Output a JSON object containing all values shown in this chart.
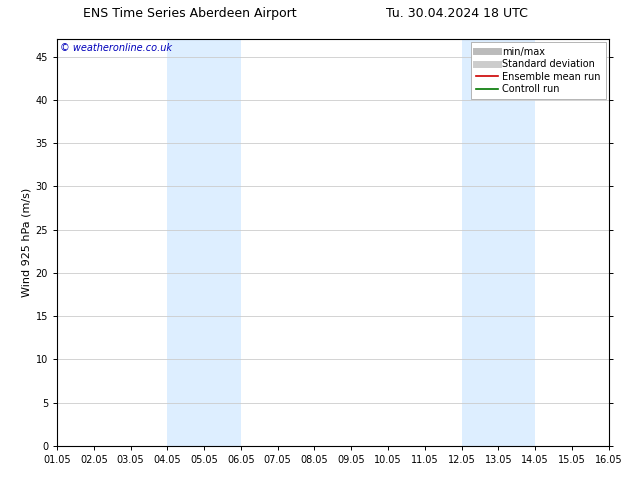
{
  "title_left": "ENS Time Series Aberdeen Airport",
  "title_right": "Tu. 30.04.2024 18 UTC",
  "ylabel": "Wind 925 hPa (m/s)",
  "watermark": "© weatheronline.co.uk",
  "watermark_color": "#0000bb",
  "x_labels": [
    "01.05",
    "02.05",
    "03.05",
    "04.05",
    "05.05",
    "06.05",
    "07.05",
    "08.05",
    "09.05",
    "10.05",
    "11.05",
    "12.05",
    "13.05",
    "14.05",
    "15.05",
    "16.05"
  ],
  "x_ticks": [
    0,
    1,
    2,
    3,
    4,
    5,
    6,
    7,
    8,
    9,
    10,
    11,
    12,
    13,
    14,
    15
  ],
  "ylim": [
    0,
    47
  ],
  "yticks": [
    0,
    5,
    10,
    15,
    20,
    25,
    30,
    35,
    40,
    45
  ],
  "shaded_regions": [
    {
      "xmin": 3,
      "xmax": 5,
      "color": "#ddeeff"
    },
    {
      "xmin": 11,
      "xmax": 13,
      "color": "#ddeeff"
    }
  ],
  "bg_color": "#ffffff",
  "plot_bg_color": "#ffffff",
  "grid_color": "#cccccc",
  "legend_items": [
    {
      "label": "min/max",
      "color": "#bbbbbb",
      "lw": 5
    },
    {
      "label": "Standard deviation",
      "color": "#cccccc",
      "lw": 5
    },
    {
      "label": "Ensemble mean run",
      "color": "#cc0000",
      "lw": 1.2
    },
    {
      "label": "Controll run",
      "color": "#007700",
      "lw": 1.2
    }
  ],
  "title_fontsize": 9,
  "tick_fontsize": 7,
  "ylabel_fontsize": 8,
  "watermark_fontsize": 7,
  "legend_fontsize": 7
}
